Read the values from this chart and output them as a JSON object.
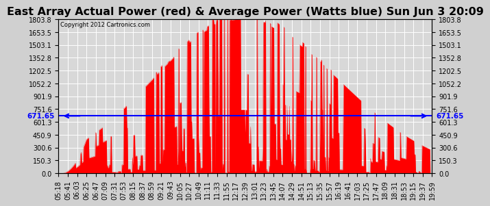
{
  "title": "East Array Actual Power (red) & Average Power (Watts blue) Sun Jun 3 20:09",
  "copyright": "Copyright 2012 Cartronics.com",
  "avg_power": 671.65,
  "ymax": 1803.8,
  "yticks": [
    0.0,
    150.3,
    300.6,
    450.9,
    601.3,
    751.6,
    901.9,
    1052.2,
    1202.5,
    1352.8,
    1503.1,
    1653.5,
    1803.8
  ],
  "xtick_labels": [
    "05:18",
    "05:41",
    "06:03",
    "06:25",
    "06:47",
    "07:09",
    "07:31",
    "07:53",
    "08:15",
    "08:37",
    "08:59",
    "09:21",
    "09:43",
    "10:05",
    "10:27",
    "10:49",
    "11:11",
    "11:33",
    "11:55",
    "12:17",
    "12:39",
    "13:01",
    "13:23",
    "13:45",
    "14:07",
    "14:29",
    "14:51",
    "15:13",
    "15:35",
    "15:57",
    "16:19",
    "16:41",
    "17:03",
    "17:25",
    "17:47",
    "18:09",
    "18:31",
    "18:53",
    "19:15",
    "19:37",
    "19:59"
  ],
  "fig_bg_color": "#d0d0d0",
  "plot_bg_color": "#d8d8d8",
  "grid_color": "#ffffff",
  "red_color": "#ff0000",
  "blue_color": "#0000ff",
  "title_fontsize": 11.5,
  "axis_fontsize": 7,
  "left_label_avg": "671.65",
  "right_label_avg": "671.65"
}
